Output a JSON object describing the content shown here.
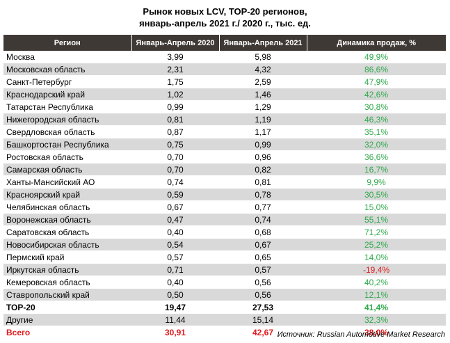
{
  "title": {
    "line1": "Рынок новых LCV, ТОР-20 регионов,",
    "line2": "январь-апрель 2021 г./ 2020 г., тыс. ед."
  },
  "table": {
    "headers": [
      "Регион",
      "Январь-Апрель 2020",
      "Январь-Апрель 2021",
      "Динамика продаж, %"
    ],
    "rows": [
      {
        "region": "Москва",
        "v2020": "3,99",
        "v2021": "5,98",
        "dynamics": "49,9%"
      },
      {
        "region": "Московская область",
        "v2020": "2,31",
        "v2021": "4,32",
        "dynamics": "86,6%"
      },
      {
        "region": "Санкт-Петербург",
        "v2020": "1,75",
        "v2021": "2,59",
        "dynamics": "47,9%"
      },
      {
        "region": "Краснодарский край",
        "v2020": "1,02",
        "v2021": "1,46",
        "dynamics": "42,6%"
      },
      {
        "region": "Татарстан Республика",
        "v2020": "0,99",
        "v2021": "1,29",
        "dynamics": "30,8%"
      },
      {
        "region": "Нижегородская область",
        "v2020": "0,81",
        "v2021": "1,19",
        "dynamics": "46,3%"
      },
      {
        "region": "Свердловская область",
        "v2020": "0,87",
        "v2021": "1,17",
        "dynamics": "35,1%"
      },
      {
        "region": "Башкортостан Республика",
        "v2020": "0,75",
        "v2021": "0,99",
        "dynamics": "32,0%"
      },
      {
        "region": "Ростовская область",
        "v2020": "0,70",
        "v2021": "0,96",
        "dynamics": "36,6%"
      },
      {
        "region": "Самарская область",
        "v2020": "0,70",
        "v2021": "0,82",
        "dynamics": "16,7%"
      },
      {
        "region": "Ханты-Мансийский АО",
        "v2020": "0,74",
        "v2021": "0,81",
        "dynamics": "9,9%"
      },
      {
        "region": "Красноярский край",
        "v2020": "0,59",
        "v2021": "0,78",
        "dynamics": "30,5%"
      },
      {
        "region": "Челябинская область",
        "v2020": "0,67",
        "v2021": "0,77",
        "dynamics": "15,0%"
      },
      {
        "region": "Воронежская область",
        "v2020": "0,47",
        "v2021": "0,74",
        "dynamics": "55,1%"
      },
      {
        "region": "Саратовская область",
        "v2020": "0,40",
        "v2021": "0,68",
        "dynamics": "71,2%"
      },
      {
        "region": "Новосибирская область",
        "v2020": "0,54",
        "v2021": "0,67",
        "dynamics": "25,2%"
      },
      {
        "region": "Пермский край",
        "v2020": "0,57",
        "v2021": "0,65",
        "dynamics": "14,0%"
      },
      {
        "region": "Иркутская область",
        "v2020": "0,71",
        "v2021": "0,57",
        "dynamics": "-19,4%"
      },
      {
        "region": "Кемеровская область",
        "v2020": "0,40",
        "v2021": "0,56",
        "dynamics": "40,2%"
      },
      {
        "region": "Ставропольский край",
        "v2020": "0,50",
        "v2021": "0,56",
        "dynamics": "12,1%"
      }
    ],
    "top20": {
      "region": "ТОР-20",
      "v2020": "19,47",
      "v2021": "27,53",
      "dynamics": "41,4%"
    },
    "others": {
      "region": "Другие",
      "v2020": "11,44",
      "v2021": "15,14",
      "dynamics": "32,3%"
    },
    "total": {
      "region": "Всего",
      "v2020": "30,91",
      "v2021": "42,67",
      "dynamics": "38,0%"
    }
  },
  "source": "Источник: Russian Automotive Market Research",
  "colors": {
    "header_bg": "#3f3935",
    "row_alt_bg": "#d9d9d9",
    "positive": "#2fa94c",
    "negative": "#e0191c",
    "total_text": "#e0191c"
  }
}
